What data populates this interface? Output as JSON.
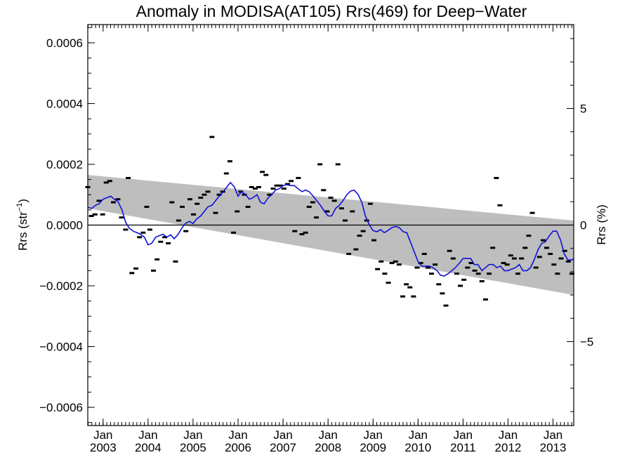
{
  "chart_data": {
    "type": "line",
    "title": "Anomaly in MODISA(AT105) Rrs(469) for Deep−Water",
    "ylabel": "Rrs (str",
    "ylabel_sup": "−1",
    "ylabel_close": ")",
    "y2label": "Rrs (%)",
    "ylim": [
      -0.00066,
      0.00066
    ],
    "y2lim": [
      -8.6,
      8.6
    ],
    "xlim": [
      2002.66,
      2013.46
    ],
    "grid": false,
    "legend": "none",
    "colors": {
      "series": "#1010d8",
      "band": "#bebebe",
      "points": "#000000",
      "zero_line": "#000000"
    },
    "y_ticks": [
      {
        "v": 0.0006,
        "label": "0.0006"
      },
      {
        "v": 0.0004,
        "label": "0.0004"
      },
      {
        "v": 0.0002,
        "label": "0.0002"
      },
      {
        "v": 0,
        "label": "0.0000"
      },
      {
        "v": -0.0002,
        "label": "−0.0002"
      },
      {
        "v": -0.0004,
        "label": "−0.0004"
      },
      {
        "v": -0.0006,
        "label": "−0.0006"
      }
    ],
    "y2_ticks": [
      {
        "v": 5,
        "label": "5"
      },
      {
        "v": 0,
        "label": "0"
      },
      {
        "v": -5,
        "label": "−5"
      }
    ],
    "x_ticks": [
      {
        "v": 2003.0,
        "month": "Jan",
        "year": "2003"
      },
      {
        "v": 2004.0,
        "month": "Jan",
        "year": "2004"
      },
      {
        "v": 2005.0,
        "month": "Jan",
        "year": "2005"
      },
      {
        "v": 2006.0,
        "month": "Jan",
        "year": "2006"
      },
      {
        "v": 2007.0,
        "month": "Jan",
        "year": "2007"
      },
      {
        "v": 2008.0,
        "month": "Jan",
        "year": "2008"
      },
      {
        "v": 2009.0,
        "month": "Jan",
        "year": "2009"
      },
      {
        "v": 2010.0,
        "month": "Jan",
        "year": "2010"
      },
      {
        "v": 2011.0,
        "month": "Jan",
        "year": "2011"
      },
      {
        "v": 2012.0,
        "month": "Jan",
        "year": "2012"
      },
      {
        "v": 2013.0,
        "month": "Jan",
        "year": "2013"
      }
    ],
    "band": {
      "upper": [
        [
          2002.66,
          0.000165
        ],
        [
          2013.46,
          1.5e-05
        ]
      ],
      "lower": [
        [
          2002.66,
          5.5e-05
        ],
        [
          2013.46,
          -0.00023
        ]
      ]
    },
    "series": [
      {
        "values": [
          [
            2002.66,
            5.8e-05
          ],
          [
            2002.75,
            5.5e-05
          ],
          [
            2002.83,
            6.5e-05
          ],
          [
            2002.91,
            7e-05
          ],
          [
            2003.0,
            8.5e-05
          ],
          [
            2003.08,
            9e-05
          ],
          [
            2003.17,
            9.5e-05
          ],
          [
            2003.25,
            8.5e-05
          ],
          [
            2003.33,
            7.8e-05
          ],
          [
            2003.42,
            5e-05
          ],
          [
            2003.5,
            1e-05
          ],
          [
            2003.58,
            -1e-05
          ],
          [
            2003.67,
            -2e-05
          ],
          [
            2003.75,
            -2.5e-05
          ],
          [
            2003.83,
            -3e-05
          ],
          [
            2003.92,
            -4e-05
          ],
          [
            2004.0,
            -6.5e-05
          ],
          [
            2004.08,
            -6e-05
          ],
          [
            2004.17,
            -4e-05
          ],
          [
            2004.25,
            -3.5e-05
          ],
          [
            2004.33,
            -3e-05
          ],
          [
            2004.42,
            -4e-05
          ],
          [
            2004.5,
            -3.2e-05
          ],
          [
            2004.58,
            -4.5e-05
          ],
          [
            2004.67,
            -3e-05
          ],
          [
            2004.75,
            -1e-05
          ],
          [
            2004.83,
            5e-06
          ],
          [
            2004.92,
            1.2e-05
          ],
          [
            2005.0,
            5e-06
          ],
          [
            2005.08,
            2e-05
          ],
          [
            2005.17,
            3e-05
          ],
          [
            2005.25,
            4.5e-05
          ],
          [
            2005.33,
            6e-05
          ],
          [
            2005.42,
            6.5e-05
          ],
          [
            2005.5,
            8e-05
          ],
          [
            2005.58,
            9.5e-05
          ],
          [
            2005.67,
            0.00011
          ],
          [
            2005.75,
            0.000125
          ],
          [
            2005.83,
            0.00014
          ],
          [
            2005.92,
            0.000125
          ],
          [
            2006.0,
            9.5e-05
          ],
          [
            2006.08,
            0.00011
          ],
          [
            2006.17,
            0.0001
          ],
          [
            2006.25,
            8.5e-05
          ],
          [
            2006.33,
            9e-05
          ],
          [
            2006.42,
            0.0001
          ],
          [
            2006.5,
            7.5e-05
          ],
          [
            2006.58,
            7e-05
          ],
          [
            2006.67,
            9e-05
          ],
          [
            2006.75,
            0.0001
          ],
          [
            2006.83,
            0.000115
          ],
          [
            2006.92,
            0.00012
          ],
          [
            2007.0,
            0.00013
          ],
          [
            2007.08,
            0.000133
          ],
          [
            2007.17,
            0.00013
          ],
          [
            2007.25,
            0.00013
          ],
          [
            2007.33,
            0.00012
          ],
          [
            2007.42,
            0.00011
          ],
          [
            2007.5,
            0.000115
          ],
          [
            2007.58,
            0.00011
          ],
          [
            2007.67,
            9.5e-05
          ],
          [
            2007.75,
            8e-05
          ],
          [
            2007.83,
            6.5e-05
          ],
          [
            2007.92,
            4.5e-05
          ],
          [
            2008.0,
            3e-05
          ],
          [
            2008.08,
            3e-05
          ],
          [
            2008.17,
            5.5e-05
          ],
          [
            2008.25,
            6.5e-05
          ],
          [
            2008.33,
            8e-05
          ],
          [
            2008.42,
            0.0001
          ],
          [
            2008.5,
            0.000112
          ],
          [
            2008.58,
            0.000115
          ],
          [
            2008.67,
            0.0001
          ],
          [
            2008.75,
            7.5e-05
          ],
          [
            2008.83,
            3e-05
          ],
          [
            2008.92,
            0.0
          ],
          [
            2009.0,
            -1.8e-05
          ],
          [
            2009.08,
            -2.2e-05
          ],
          [
            2009.17,
            -1.5e-05
          ],
          [
            2009.25,
            -2.5e-05
          ],
          [
            2009.33,
            -1.8e-05
          ],
          [
            2009.42,
            -8e-06
          ],
          [
            2009.5,
            -5e-06
          ],
          [
            2009.58,
            -8e-06
          ],
          [
            2009.67,
            -2.2e-05
          ],
          [
            2009.75,
            -2.5e-05
          ],
          [
            2009.83,
            -5.5e-05
          ],
          [
            2009.92,
            -9e-05
          ],
          [
            2010.0,
            -0.00012
          ],
          [
            2010.08,
            -0.000135
          ],
          [
            2010.17,
            -0.000135
          ],
          [
            2010.25,
            -0.000135
          ],
          [
            2010.33,
            -0.00014
          ],
          [
            2010.42,
            -0.00015
          ],
          [
            2010.5,
            -0.000165
          ],
          [
            2010.58,
            -0.000168
          ],
          [
            2010.67,
            -0.00016
          ],
          [
            2010.75,
            -0.00015
          ],
          [
            2010.83,
            -0.00014
          ],
          [
            2010.92,
            -0.000125
          ],
          [
            2011.0,
            -0.00011
          ],
          [
            2011.08,
            -0.00011
          ],
          [
            2011.17,
            -0.00011
          ],
          [
            2011.25,
            -0.00013
          ],
          [
            2011.33,
            -0.00013
          ],
          [
            2011.42,
            -0.00015
          ],
          [
            2011.5,
            -0.00014
          ],
          [
            2011.58,
            -0.00013
          ],
          [
            2011.67,
            -0.00013
          ],
          [
            2011.75,
            -0.00014
          ],
          [
            2011.83,
            -0.000135
          ],
          [
            2011.92,
            -0.00015
          ],
          [
            2012.0,
            -0.00015
          ],
          [
            2012.08,
            -0.000145
          ],
          [
            2012.17,
            -0.00014
          ],
          [
            2012.25,
            -0.00013
          ],
          [
            2012.33,
            -0.00015
          ],
          [
            2012.42,
            -0.00015
          ],
          [
            2012.5,
            -0.00014
          ],
          [
            2012.58,
            -0.000115
          ],
          [
            2012.67,
            -8e-05
          ],
          [
            2012.75,
            -6e-05
          ],
          [
            2012.83,
            -5.5e-05
          ],
          [
            2012.92,
            -3.5e-05
          ],
          [
            2013.0,
            -2e-05
          ],
          [
            2013.08,
            -2e-05
          ],
          [
            2013.17,
            -5e-05
          ],
          [
            2013.25,
            -9.5e-05
          ],
          [
            2013.33,
            -0.000115
          ],
          [
            2013.42,
            -0.000115
          ],
          [
            2013.46,
            -0.00011
          ]
        ]
      }
    ],
    "points": [
      [
        2002.66,
        0.000125
      ],
      [
        2002.74,
        3e-05
      ],
      [
        2002.82,
        3.5e-05
      ],
      [
        2002.91,
        8e-05
      ],
      [
        2002.99,
        3.5e-05
      ],
      [
        2003.07,
        0.00014
      ],
      [
        2003.15,
        0.000145
      ],
      [
        2003.23,
        7.5e-05
      ],
      [
        2003.33,
        8.5e-05
      ],
      [
        2003.41,
        2.5e-05
      ],
      [
        2003.5,
        -1.5e-05
      ],
      [
        2003.56,
        0.000155
      ],
      [
        2003.64,
        -0.000158
      ],
      [
        2003.73,
        -0.000143
      ],
      [
        2003.81,
        -4e-05
      ],
      [
        2003.89,
        -2.5e-05
      ],
      [
        2003.97,
        6e-05
      ],
      [
        2004.04,
        -1.5e-05
      ],
      [
        2004.12,
        -0.00015
      ],
      [
        2004.2,
        -0.000113
      ],
      [
        2004.28,
        -5.5e-05
      ],
      [
        2004.37,
        -4e-05
      ],
      [
        2004.45,
        -6e-05
      ],
      [
        2004.53,
        7.5e-05
      ],
      [
        2004.61,
        -0.00012
      ],
      [
        2004.68,
        1.5e-05
      ],
      [
        2004.76,
        6e-05
      ],
      [
        2004.84,
        -2e-05
      ],
      [
        2004.93,
        8.5e-05
      ],
      [
        2005.01,
        3.5e-05
      ],
      [
        2005.09,
        7e-05
      ],
      [
        2005.17,
        9e-05
      ],
      [
        2005.25,
        0.0001
      ],
      [
        2005.33,
        0.00011
      ],
      [
        2005.42,
        0.00029
      ],
      [
        2005.5,
        4e-05
      ],
      [
        2005.58,
        0.0001
      ],
      [
        2005.66,
        0.00011
      ],
      [
        2005.74,
        0.00017
      ],
      [
        2005.82,
        0.00021
      ],
      [
        2005.9,
        -2.5e-05
      ],
      [
        2005.98,
        4.5e-05
      ],
      [
        2006.06,
        0.00011
      ],
      [
        2006.14,
        0.0001
      ],
      [
        2006.22,
        6e-05
      ],
      [
        2006.3,
        0.000125
      ],
      [
        2006.38,
        0.00012
      ],
      [
        2006.46,
        0.000125
      ],
      [
        2006.54,
        0.000175
      ],
      [
        2006.62,
        0.000165
      ],
      [
        2006.7,
        0.0001
      ],
      [
        2006.78,
        0.00012
      ],
      [
        2006.86,
        0.00013
      ],
      [
        2006.94,
        0.00013
      ],
      [
        2007.02,
        0.00012
      ],
      [
        2007.1,
        0.000135
      ],
      [
        2007.18,
        0.000145
      ],
      [
        2007.26,
        -2e-05
      ],
      [
        2007.34,
        0.000155
      ],
      [
        2007.42,
        -3e-05
      ],
      [
        2007.5,
        -2.5e-05
      ],
      [
        2007.58,
        6e-05
      ],
      [
        2007.66,
        7.5e-05
      ],
      [
        2007.74,
        2.5e-05
      ],
      [
        2007.82,
        0.0002
      ],
      [
        2007.9,
        0.000115
      ],
      [
        2007.98,
        4.5e-05
      ],
      [
        2008.06,
        9e-05
      ],
      [
        2008.14,
        8e-05
      ],
      [
        2008.22,
        0.0002
      ],
      [
        2008.3,
        5.5e-05
      ],
      [
        2008.38,
        1.5e-05
      ],
      [
        2008.46,
        -9.5e-05
      ],
      [
        2008.54,
        4.5e-05
      ],
      [
        2008.62,
        -8e-05
      ],
      [
        2008.7,
        -3.5e-05
      ],
      [
        2008.78,
        -2e-05
      ],
      [
        2008.86,
        1.5e-05
      ],
      [
        2008.94,
        7e-05
      ],
      [
        2009.02,
        -5e-05
      ],
      [
        2009.1,
        -0.000145
      ],
      [
        2009.18,
        -0.00012
      ],
      [
        2009.26,
        -0.00016
      ],
      [
        2009.34,
        -0.00019
      ],
      [
        2009.42,
        -0.000125
      ],
      [
        2009.5,
        -0.00012
      ],
      [
        2009.58,
        -0.00013
      ],
      [
        2009.66,
        -0.000235
      ],
      [
        2009.74,
        -0.000195
      ],
      [
        2009.82,
        -0.000205
      ],
      [
        2009.9,
        -0.000235
      ],
      [
        2009.98,
        -0.00014
      ],
      [
        2010.06,
        -0.000125
      ],
      [
        2010.14,
        -9.5e-05
      ],
      [
        2010.22,
        -0.00014
      ],
      [
        2010.3,
        -0.00016
      ],
      [
        2010.38,
        -0.00013
      ],
      [
        2010.46,
        -0.000195
      ],
      [
        2010.54,
        -0.000225
      ],
      [
        2010.62,
        -0.000265
      ],
      [
        2010.7,
        -8.5e-05
      ],
      [
        2010.78,
        -0.00011
      ],
      [
        2010.86,
        -0.00016
      ],
      [
        2010.94,
        -0.0002
      ],
      [
        2011.02,
        -0.00018
      ],
      [
        2011.1,
        -0.00014
      ],
      [
        2011.18,
        -0.000125
      ],
      [
        2011.26,
        -0.00015
      ],
      [
        2011.34,
        -0.00016
      ],
      [
        2011.42,
        -0.000185
      ],
      [
        2011.5,
        -0.000245
      ],
      [
        2011.58,
        -0.00016
      ],
      [
        2011.66,
        -7.5e-05
      ],
      [
        2011.74,
        0.000155
      ],
      [
        2011.82,
        6.5e-05
      ],
      [
        2011.9,
        -0.000125
      ],
      [
        2011.98,
        -0.00013
      ],
      [
        2012.06,
        -0.0001
      ],
      [
        2012.14,
        -0.00011
      ],
      [
        2012.22,
        -0.00016
      ],
      [
        2012.3,
        -0.00011
      ],
      [
        2012.38,
        -7.5e-05
      ],
      [
        2012.46,
        -3.5e-05
      ],
      [
        2012.54,
        4e-05
      ],
      [
        2012.62,
        -0.00014
      ],
      [
        2012.7,
        -0.000105
      ],
      [
        2012.78,
        -5e-05
      ],
      [
        2012.86,
        -7.5e-05
      ],
      [
        2012.94,
        -9.5e-05
      ],
      [
        2013.02,
        -0.00013
      ],
      [
        2013.1,
        -0.00016
      ],
      [
        2013.18,
        -0.00011
      ],
      [
        2013.26,
        -8.5e-05
      ],
      [
        2013.34,
        -0.00012
      ],
      [
        2013.42,
        -0.00016
      ]
    ]
  }
}
